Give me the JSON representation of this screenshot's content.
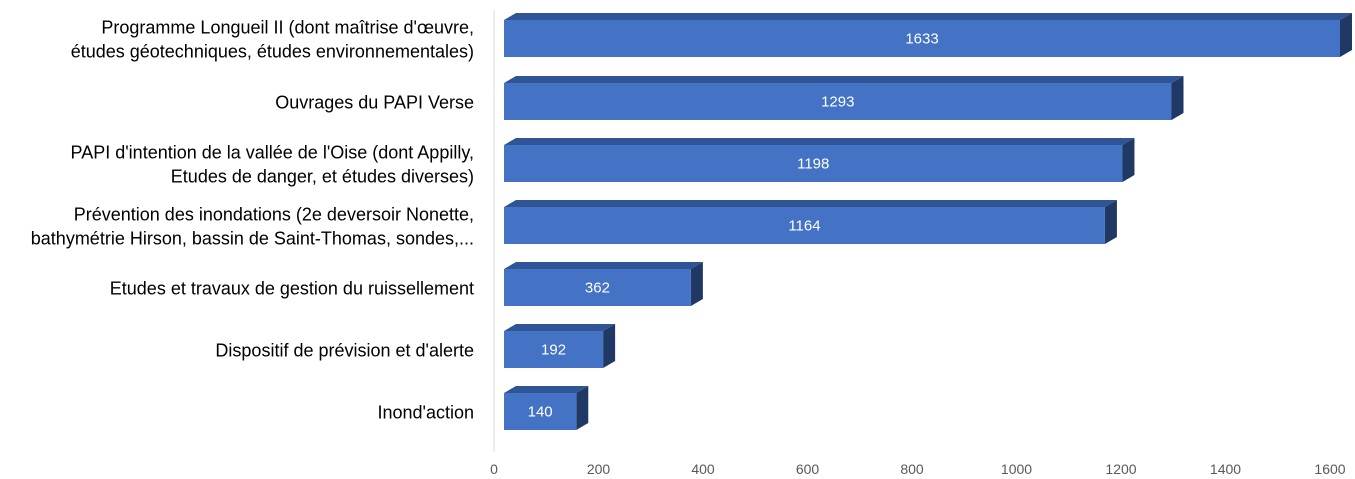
{
  "chart_data": {
    "type": "bar",
    "orientation": "horizontal",
    "style": "3d",
    "categories": [
      [
        "Programme Longueil II (dont maîtrise d'œuvre,",
        "études géotechniques, études environnementales)"
      ],
      [
        "Ouvrages du PAPI Verse"
      ],
      [
        "PAPI d'intention de la vallée de l'Oise (dont Appilly,",
        "Etudes de danger, et études diverses)"
      ],
      [
        "Prévention des inondations (2e deversoir Nonette,",
        "bathymétrie Hirson, bassin de Saint-Thomas, sondes,..."
      ],
      [
        "Etudes et travaux de gestion du ruissellement"
      ],
      [
        "Dispositif de prévision et d'alerte"
      ],
      [
        "Inond'action"
      ]
    ],
    "values": [
      1633,
      1293,
      1198,
      1164,
      362,
      192,
      140
    ],
    "data_labels": [
      "1633",
      "1293",
      "1198",
      "1164",
      "362",
      "192",
      "140"
    ],
    "xlim": [
      0,
      1600
    ],
    "ticks": [
      "0",
      "200",
      "400",
      "600",
      "800",
      "1000",
      "1200",
      "1400",
      "1600"
    ],
    "grid": false,
    "legend": "none",
    "colors": {
      "bar_front": "#4472C4",
      "bar_top": "#2F5597",
      "bar_side": "#203864",
      "axis": "#D9D9D9",
      "tick_text": "#595959"
    }
  }
}
